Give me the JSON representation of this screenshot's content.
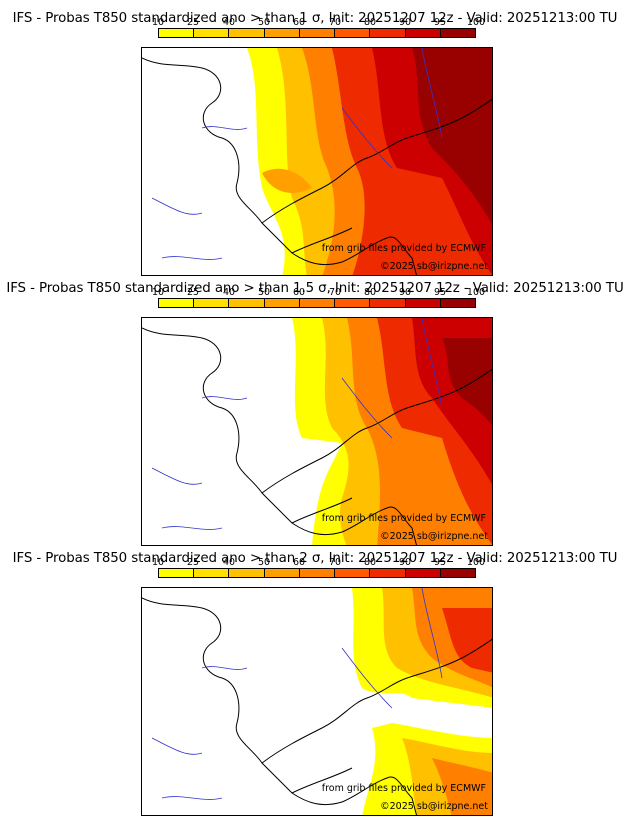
{
  "panels": [
    {
      "title": "IFS - Probas T850  standardized ano > than 1 σ, Init: 20251207 12z - Valid: 20251213:00 TU",
      "threshold": "1 σ",
      "credit_source": "from grib files provided by ECMWF",
      "credit_copyright": "©2025 sb@irizpne.net"
    },
    {
      "title": "IFS - Probas T850  standardized ano > than 1.5 σ, Init: 20251207 12z - Valid: 20251213:00 TU",
      "threshold": "1.5 σ",
      "credit_source": "from grib files provided by ECMWF",
      "credit_copyright": "©2025 sb@irizpne.net"
    },
    {
      "title": "IFS - Probas T850  standardized ano > than 2 σ, Init: 20251207 12z - Valid: 20251213:00 TU",
      "threshold": "2 σ",
      "credit_source": "from grib files provided by ECMWF",
      "credit_copyright": "©2025 sb@irizpne.net"
    }
  ],
  "colorbar": {
    "labels": [
      "10",
      "25",
      "40",
      "50",
      "60",
      "70",
      "80",
      "90",
      "95",
      "100"
    ],
    "colors": [
      "#ffff00",
      "#ffe000",
      "#ffc000",
      "#ffa000",
      "#ff8000",
      "#ff5a00",
      "#ee2a00",
      "#cc0000",
      "#990000",
      "#660000"
    ]
  },
  "colors": {
    "land_outline": "#000000",
    "rivers": "#3333cc",
    "regions": "#999999"
  }
}
